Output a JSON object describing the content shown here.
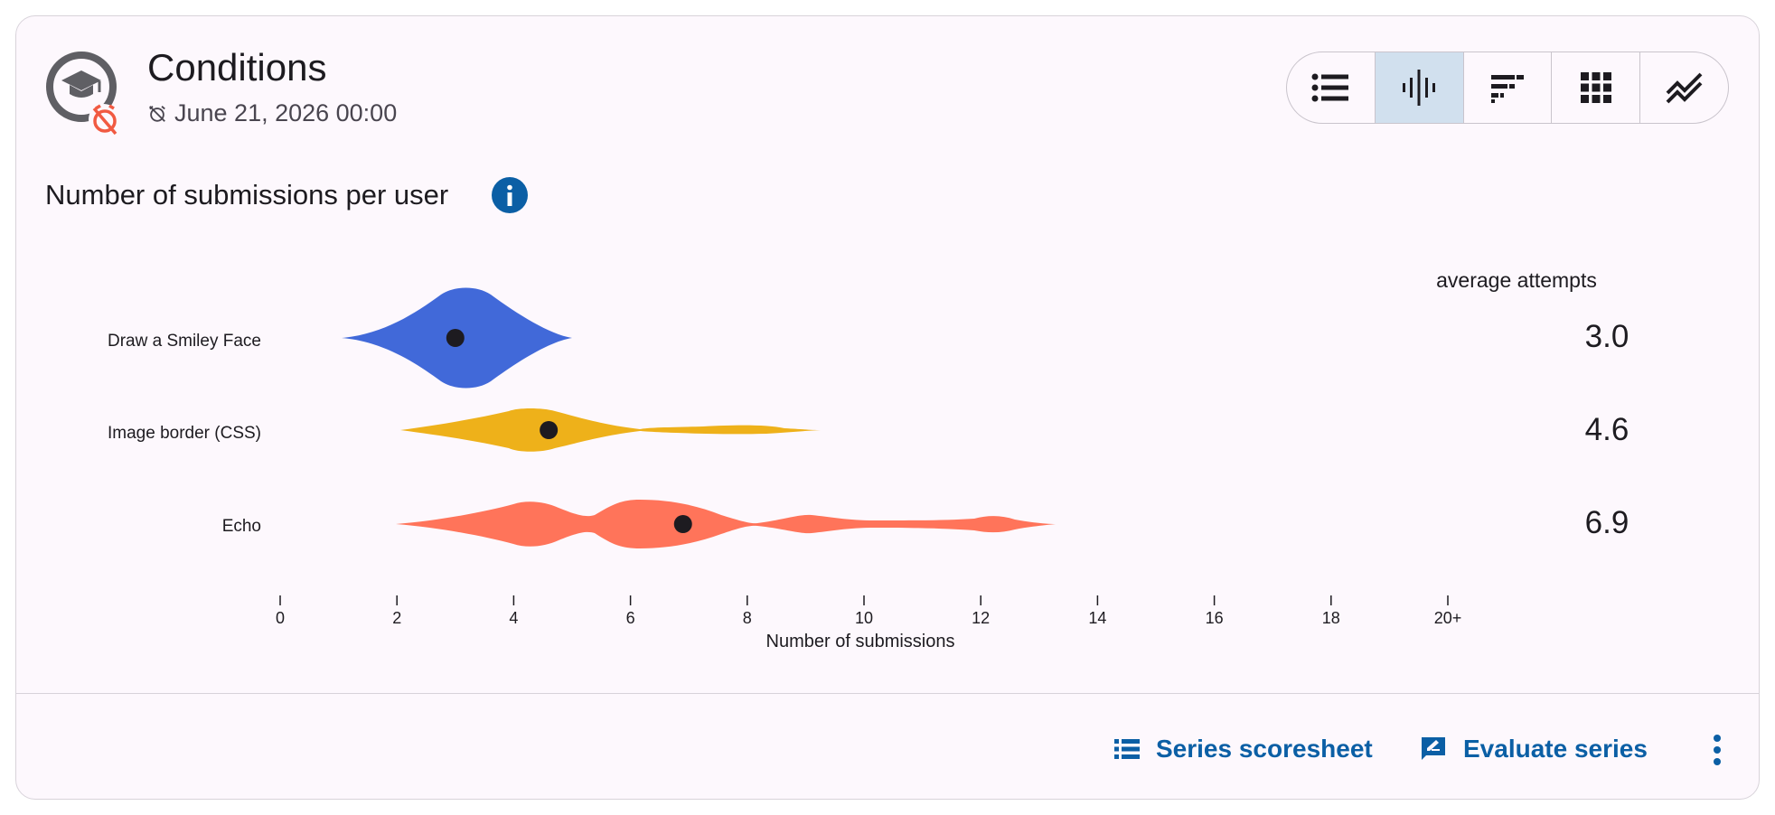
{
  "header": {
    "title": "Conditions",
    "deadline": "June 21, 2026 00:00"
  },
  "view_toggle": {
    "options": [
      {
        "icon": "list-icon",
        "active": false
      },
      {
        "icon": "violin-icon",
        "active": true
      },
      {
        "icon": "stacked-bar-icon",
        "active": false
      },
      {
        "icon": "heatmap-grid-icon",
        "active": false
      },
      {
        "icon": "line-chart-icon",
        "active": false
      }
    ]
  },
  "chart_data": {
    "type": "violin",
    "title": "Number of submissions per user",
    "xlabel": "Number of submissions",
    "xlim": [
      0,
      20
    ],
    "x_ticks": [
      "0",
      "2",
      "4",
      "6",
      "8",
      "10",
      "12",
      "14",
      "16",
      "18",
      "20+"
    ],
    "stat_header": "average attempts",
    "series": [
      {
        "name": "Draw a Smiley Face",
        "color": "#4169d9",
        "mean": 3.0,
        "mean_label": "3.0",
        "range": [
          1,
          5
        ]
      },
      {
        "name": "Image border (CSS)",
        "color": "#eeb11a",
        "mean": 4.6,
        "mean_label": "4.6",
        "range": [
          2,
          9
        ]
      },
      {
        "name": "Echo",
        "color": "#ff745a",
        "mean": 6.9,
        "mean_label": "6.9",
        "range": [
          2,
          13
        ]
      }
    ]
  },
  "footer": {
    "scoresheet_label": "Series scoresheet",
    "evaluate_label": "Evaluate series"
  },
  "colors": {
    "accent": "#0b5fa5",
    "active_toggle": "#d1e0ee",
    "deadline_alert": "#f15a42"
  }
}
